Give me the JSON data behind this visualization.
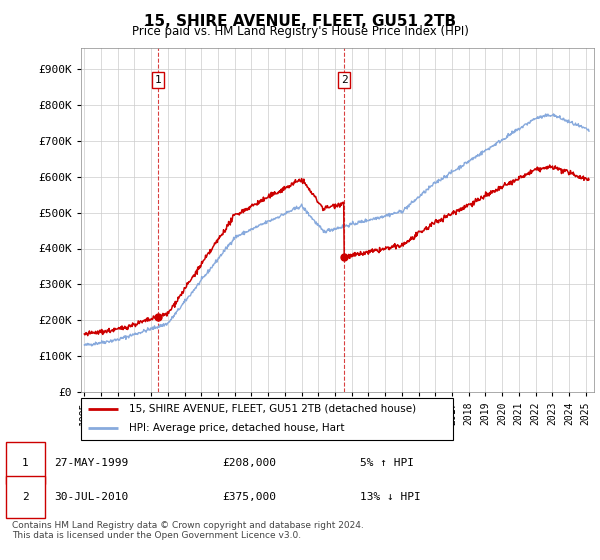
{
  "title": "15, SHIRE AVENUE, FLEET, GU51 2TB",
  "subtitle": "Price paid vs. HM Land Registry's House Price Index (HPI)",
  "ytick_values": [
    0,
    100000,
    200000,
    300000,
    400000,
    500000,
    600000,
    700000,
    800000,
    900000
  ],
  "ylim": [
    0,
    960000
  ],
  "xlim_start": 1994.8,
  "xlim_end": 2025.5,
  "transaction1": {
    "date_label": "27-MAY-1999",
    "year": 1999.4,
    "price": 208000,
    "label": "1",
    "note": "5% ↑ HPI"
  },
  "transaction2": {
    "date_label": "30-JUL-2010",
    "year": 2010.55,
    "price": 375000,
    "label": "2",
    "note": "13% ↓ HPI"
  },
  "legend_line1": "15, SHIRE AVENUE, FLEET, GU51 2TB (detached house)",
  "legend_line2": "HPI: Average price, detached house, Hart",
  "footer": "Contains HM Land Registry data © Crown copyright and database right 2024.\nThis data is licensed under the Open Government Licence v3.0.",
  "property_color": "#cc0000",
  "hpi_color": "#88aadd",
  "vline_color": "#cc0000",
  "marker_color": "#cc0000",
  "background_color": "#ffffff",
  "grid_color": "#cccccc",
  "title_fontsize": 11,
  "subtitle_fontsize": 8.5
}
